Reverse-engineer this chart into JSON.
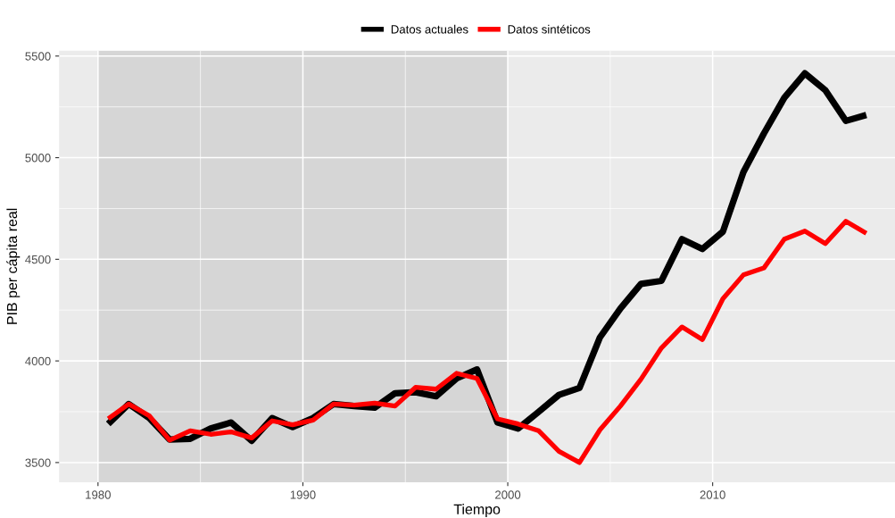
{
  "chart_data": {
    "type": "line",
    "xlabel": "Tiempo",
    "ylabel": "PIB per cápita real",
    "x": [
      1980.5,
      1981.5,
      1982.5,
      1983.5,
      1984.5,
      1985.5,
      1986.5,
      1987.5,
      1988.5,
      1989.5,
      1990.5,
      1991.5,
      1992.5,
      1993.5,
      1994.5,
      1995.5,
      1996.5,
      1997.5,
      1998.5,
      1999.5,
      2000.5,
      2001.5,
      2002.5,
      2003.5,
      2004.5,
      2005.5,
      2006.5,
      2007.5,
      2008.5,
      2009.5,
      2010.5,
      2011.5,
      2012.5,
      2013.5,
      2014.5,
      2015.5,
      2016.5,
      2017.5
    ],
    "series": [
      {
        "name": "Datos actuales",
        "color": "#000000",
        "values": [
          3690,
          3788,
          3719,
          3613,
          3617,
          3668,
          3697,
          3607,
          3719,
          3675,
          3719,
          3788,
          3778,
          3770,
          3841,
          3846,
          3826,
          3914,
          3958,
          3697,
          3667,
          3749,
          3833,
          3867,
          4116,
          4258,
          4379,
          4394,
          4599,
          4551,
          4636,
          4929,
          5119,
          5295,
          5415,
          5332,
          5181,
          5210
        ]
      },
      {
        "name": "Datos sintéticos",
        "color": "#ff0000",
        "values": [
          3715,
          3788,
          3730,
          3610,
          3656,
          3639,
          3651,
          3621,
          3705,
          3686,
          3709,
          3788,
          3782,
          3792,
          3778,
          3870,
          3861,
          3939,
          3914,
          3715,
          3690,
          3657,
          3555,
          3500,
          3661,
          3778,
          3910,
          4064,
          4167,
          4105,
          4306,
          4423,
          4457,
          4599,
          4639,
          4577,
          4687,
          4628
        ]
      }
    ],
    "xlim": [
      1978.1,
      2018.9
    ],
    "xticks": [
      1980,
      1990,
      2000,
      2010
    ],
    "ylim": [
      3403,
      5526
    ],
    "yticks": [
      3500,
      4000,
      4500,
      5000,
      5500
    ],
    "bands": [
      {
        "axis": "x",
        "from": 1980,
        "to": 2000,
        "color": "#d6d6d6"
      }
    ],
    "grid": true,
    "legend": "top",
    "line_style": "solid",
    "marker": "none"
  }
}
